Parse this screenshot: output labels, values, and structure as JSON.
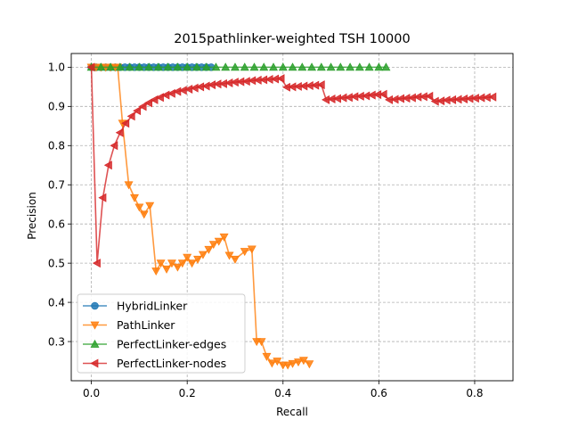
{
  "chart_data": {
    "type": "line",
    "title": "2015pathlinker-weighted TSH 10000",
    "xlabel": "Recall",
    "ylabel": "Precision",
    "xlim": [
      -0.042,
      0.88
    ],
    "ylim": [
      0.2,
      1.035
    ],
    "xticks": [
      0.0,
      0.2,
      0.4,
      0.6,
      0.8
    ],
    "xtick_labels": [
      "0.0",
      "0.2",
      "0.4",
      "0.6",
      "0.8"
    ],
    "yticks": [
      0.3,
      0.4,
      0.5,
      0.6,
      0.7,
      0.8,
      0.9,
      1.0
    ],
    "ytick_labels": [
      "0.3",
      "0.4",
      "0.5",
      "0.6",
      "0.7",
      "0.8",
      "0.9",
      "1.0"
    ],
    "grid": true,
    "legend_position": "lower-left",
    "series": [
      {
        "name": "HybridLinker",
        "color": "#1f77b4",
        "marker": "circle",
        "points": [
          [
            0.0,
            1.0
          ],
          [
            0.01,
            1.0
          ],
          [
            0.02,
            1.0
          ],
          [
            0.03,
            1.0
          ],
          [
            0.04,
            1.0
          ],
          [
            0.05,
            1.0
          ],
          [
            0.06,
            1.0
          ],
          [
            0.07,
            1.0
          ],
          [
            0.08,
            1.0
          ],
          [
            0.09,
            1.0
          ],
          [
            0.1,
            1.0
          ],
          [
            0.11,
            1.0
          ],
          [
            0.12,
            1.0
          ],
          [
            0.13,
            1.0
          ],
          [
            0.14,
            1.0
          ],
          [
            0.15,
            1.0
          ],
          [
            0.16,
            1.0
          ],
          [
            0.17,
            1.0
          ],
          [
            0.18,
            1.0
          ],
          [
            0.19,
            1.0
          ],
          [
            0.2,
            1.0
          ],
          [
            0.21,
            1.0
          ],
          [
            0.22,
            1.0
          ],
          [
            0.23,
            1.0
          ],
          [
            0.24,
            1.0
          ],
          [
            0.25,
            1.0
          ]
        ]
      },
      {
        "name": "PathLinker",
        "color": "#ff7f0e",
        "marker": "triangle-down",
        "points": [
          [
            0.0,
            1.0
          ],
          [
            0.01,
            1.0
          ],
          [
            0.02,
            1.0
          ],
          [
            0.03,
            1.0
          ],
          [
            0.04,
            1.0
          ],
          [
            0.05,
            1.0
          ],
          [
            0.055,
            1.0
          ],
          [
            0.065,
            0.857
          ],
          [
            0.078,
            0.7
          ],
          [
            0.09,
            0.667
          ],
          [
            0.1,
            0.643
          ],
          [
            0.11,
            0.625
          ],
          [
            0.122,
            0.647
          ],
          [
            0.135,
            0.48
          ],
          [
            0.145,
            0.5
          ],
          [
            0.157,
            0.485
          ],
          [
            0.168,
            0.5
          ],
          [
            0.18,
            0.49
          ],
          [
            0.19,
            0.5
          ],
          [
            0.2,
            0.515
          ],
          [
            0.21,
            0.5
          ],
          [
            0.222,
            0.51
          ],
          [
            0.233,
            0.522
          ],
          [
            0.245,
            0.535
          ],
          [
            0.255,
            0.548
          ],
          [
            0.266,
            0.556
          ],
          [
            0.277,
            0.567
          ],
          [
            0.288,
            0.52
          ],
          [
            0.3,
            0.51
          ],
          [
            0.32,
            0.53
          ],
          [
            0.335,
            0.536
          ],
          [
            0.345,
            0.3
          ],
          [
            0.355,
            0.3
          ],
          [
            0.366,
            0.262
          ],
          [
            0.377,
            0.245
          ],
          [
            0.388,
            0.25
          ],
          [
            0.4,
            0.24
          ],
          [
            0.41,
            0.24
          ],
          [
            0.42,
            0.244
          ],
          [
            0.432,
            0.248
          ],
          [
            0.443,
            0.252
          ],
          [
            0.455,
            0.243
          ]
        ]
      },
      {
        "name": "PerfectLinker-edges",
        "color": "#2ca02c",
        "marker": "triangle-up",
        "points": [
          [
            0.0,
            1.0
          ],
          [
            0.02,
            1.0
          ],
          [
            0.04,
            1.0
          ],
          [
            0.06,
            1.0
          ],
          [
            0.08,
            1.0
          ],
          [
            0.1,
            1.0
          ],
          [
            0.12,
            1.0
          ],
          [
            0.14,
            1.0
          ],
          [
            0.16,
            1.0
          ],
          [
            0.18,
            1.0
          ],
          [
            0.2,
            1.0
          ],
          [
            0.22,
            1.0
          ],
          [
            0.24,
            1.0
          ],
          [
            0.26,
            1.0
          ],
          [
            0.28,
            1.0
          ],
          [
            0.3,
            1.0
          ],
          [
            0.32,
            1.0
          ],
          [
            0.34,
            1.0
          ],
          [
            0.36,
            1.0
          ],
          [
            0.38,
            1.0
          ],
          [
            0.4,
            1.0
          ],
          [
            0.42,
            1.0
          ],
          [
            0.44,
            1.0
          ],
          [
            0.46,
            1.0
          ],
          [
            0.48,
            1.0
          ],
          [
            0.5,
            1.0
          ],
          [
            0.52,
            1.0
          ],
          [
            0.54,
            1.0
          ],
          [
            0.56,
            1.0
          ],
          [
            0.58,
            1.0
          ],
          [
            0.6,
            1.0
          ],
          [
            0.615,
            1.0
          ]
        ]
      },
      {
        "name": "PerfectLinker-nodes",
        "color": "#d62728",
        "marker": "triangle-left",
        "points": [
          [
            0.0,
            1.0
          ],
          [
            0.012,
            0.5
          ],
          [
            0.024,
            0.667
          ],
          [
            0.036,
            0.75
          ],
          [
            0.048,
            0.8
          ],
          [
            0.06,
            0.833
          ],
          [
            0.072,
            0.857
          ],
          [
            0.084,
            0.875
          ],
          [
            0.096,
            0.889
          ],
          [
            0.108,
            0.9
          ],
          [
            0.12,
            0.909
          ],
          [
            0.132,
            0.917
          ],
          [
            0.144,
            0.923
          ],
          [
            0.156,
            0.929
          ],
          [
            0.168,
            0.933
          ],
          [
            0.18,
            0.938
          ],
          [
            0.192,
            0.941
          ],
          [
            0.204,
            0.944
          ],
          [
            0.216,
            0.947
          ],
          [
            0.228,
            0.95
          ],
          [
            0.24,
            0.952
          ],
          [
            0.252,
            0.955
          ],
          [
            0.264,
            0.957
          ],
          [
            0.276,
            0.958
          ],
          [
            0.288,
            0.96
          ],
          [
            0.3,
            0.962
          ],
          [
            0.312,
            0.963
          ],
          [
            0.324,
            0.964
          ],
          [
            0.336,
            0.966
          ],
          [
            0.348,
            0.967
          ],
          [
            0.36,
            0.968
          ],
          [
            0.372,
            0.969
          ],
          [
            0.384,
            0.97
          ],
          [
            0.396,
            0.971
          ],
          [
            0.408,
            0.949
          ],
          [
            0.42,
            0.95
          ],
          [
            0.432,
            0.951
          ],
          [
            0.444,
            0.952
          ],
          [
            0.456,
            0.953
          ],
          [
            0.468,
            0.954
          ],
          [
            0.48,
            0.955
          ],
          [
            0.49,
            0.917
          ],
          [
            0.502,
            0.919
          ],
          [
            0.514,
            0.92
          ],
          [
            0.526,
            0.922
          ],
          [
            0.538,
            0.923
          ],
          [
            0.55,
            0.925
          ],
          [
            0.562,
            0.926
          ],
          [
            0.574,
            0.927
          ],
          [
            0.586,
            0.929
          ],
          [
            0.598,
            0.93
          ],
          [
            0.61,
            0.931
          ],
          [
            0.622,
            0.917
          ],
          [
            0.634,
            0.918
          ],
          [
            0.646,
            0.92
          ],
          [
            0.658,
            0.921
          ],
          [
            0.67,
            0.922
          ],
          [
            0.682,
            0.924
          ],
          [
            0.694,
            0.925
          ],
          [
            0.706,
            0.926
          ],
          [
            0.718,
            0.913
          ],
          [
            0.73,
            0.914
          ],
          [
            0.742,
            0.916
          ],
          [
            0.754,
            0.917
          ],
          [
            0.766,
            0.918
          ],
          [
            0.778,
            0.919
          ],
          [
            0.79,
            0.92
          ],
          [
            0.802,
            0.921
          ],
          [
            0.814,
            0.922
          ],
          [
            0.826,
            0.923
          ],
          [
            0.838,
            0.924
          ]
        ]
      }
    ]
  }
}
